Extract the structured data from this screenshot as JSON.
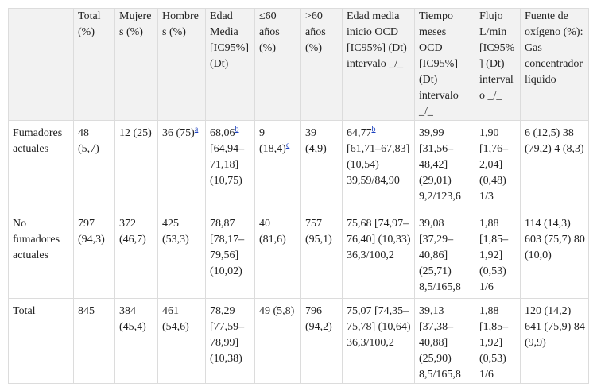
{
  "table": {
    "header": [
      "Total (%)",
      "Mujeres (%)",
      "Hombres (%)",
      "Edad Media [IC95%] (Dt)",
      "≤60 años (%)",
      ">60 años (%)",
      "Edad media inicio OCD [IC95%] (Dt) intervalo _/_",
      "Tiempo meses OCD [IC95%] (Dt) intervalo _/_",
      "Flujo L/min [IC95%] (Dt) intervalo _/_",
      "Fuente de oxígeno (%): Gas concentrador líquido"
    ],
    "rows": [
      {
        "label": "Fumadores actuales",
        "cells": [
          "48 (5,7)",
          "12 (25)",
          {
            "main": "36 (75)",
            "sup": "a"
          },
          {
            "main": "68,06",
            "sup": "b",
            "rest": "[64,94–71,18] (10,75)"
          },
          {
            "main": "9 (18,4)",
            "sup": "c"
          },
          "39 (4,9)",
          {
            "main": "64,77",
            "sup": "b",
            "rest": "[61,71–67,83] (10,54) 39,59/84,90"
          },
          "39,99 [31,56–48,42] (29,01) 9,2/123,6",
          "1,90 [1,76–2,04] (0,48) 1/3",
          "6 (12,5) 38 (79,2) 4 (8,3)"
        ]
      },
      {
        "label": "No fumadores actuales",
        "cells": [
          "797 (94,3)",
          "372 (46,7)",
          "425 (53,3)",
          "78,87 [78,17–79,56] (10,02)",
          "40 (81,6)",
          "757 (95,1)",
          "75,68 [74,97–76,40] (10,33) 36,3/100,2",
          "39,08 [37,29–40,86] (25,71) 8,5/165,8",
          "1,88 [1,85–1,92] (0,53) 1/6",
          "114 (14,3) 603 (75,7) 80 (10,0)"
        ]
      },
      {
        "label": "Total",
        "cells": [
          "845",
          "384 (45,4)",
          "461 (54,6)",
          "78,29 [77,59–78,99] (10,38)",
          "49 (5,8)",
          "796 (94,2)",
          "75,07 [74,35–75,78] (10,64) 36,3/100,2",
          "39,13 [37,38–40,88] (25,90) 8,5/165,8",
          "1,88 [1,85–1,92] (0,53) 1/6",
          "120 (14,2) 641 (75,9) 84 (9,9)"
        ]
      }
    ]
  }
}
